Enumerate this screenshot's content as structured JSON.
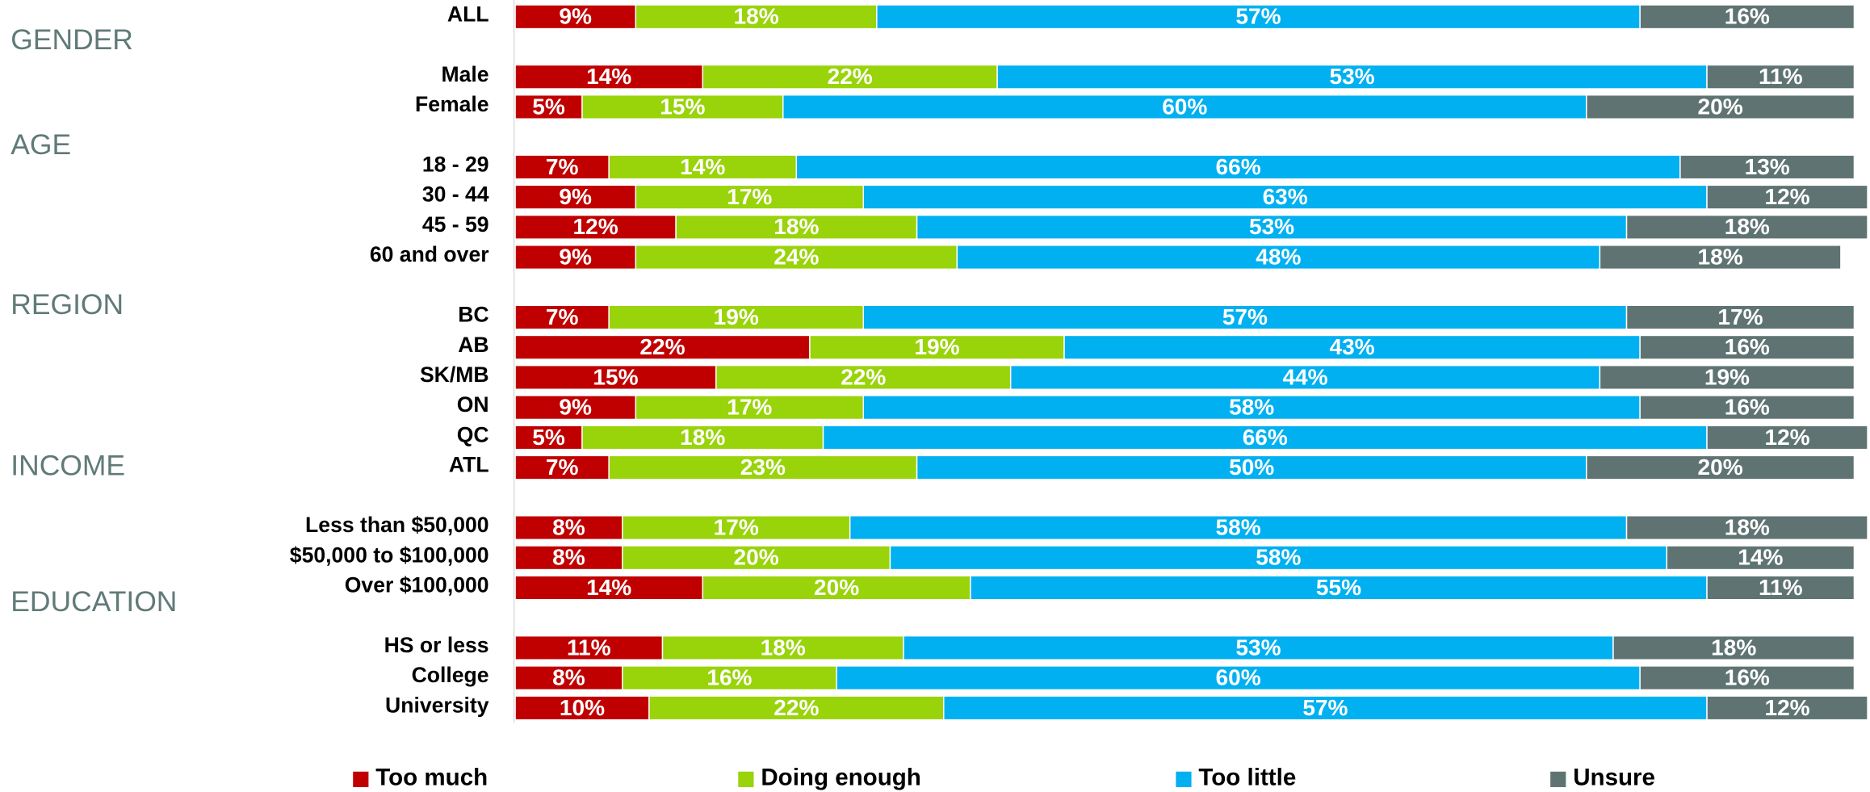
{
  "chart_data": {
    "type": "stacked-bar-horizontal",
    "group_labels": [
      "GENDER",
      "AGE",
      "REGION",
      "INCOME",
      "EDUCATION"
    ],
    "categories": [
      "ALL",
      "Male",
      "Female",
      "18 - 29",
      "30 - 44",
      "45 - 59",
      "60 and over",
      "BC",
      "AB",
      "SK/MB",
      "ON",
      "QC",
      "ATL",
      "Less than $50,000",
      "$50,000 to $100,000",
      "Over $100,000",
      "HS or less",
      "College",
      "University"
    ],
    "xlim": [
      0,
      101
    ],
    "series": [
      {
        "name": "Too much",
        "color": "#c00000",
        "values": [
          9,
          14,
          5,
          7,
          9,
          12,
          9,
          7,
          22,
          15,
          9,
          5,
          7,
          8,
          8,
          14,
          11,
          8,
          10
        ],
        "value_labels": [
          "9%",
          "14%",
          "5%",
          "7%",
          "9%",
          "12%",
          "9%",
          "7%",
          "22%",
          "15%",
          "9%",
          "5%",
          "7%",
          "8%",
          "8%",
          "14%",
          "11%",
          "8%",
          "10%"
        ]
      },
      {
        "name": "Doing enough",
        "color": "#99d30a",
        "values": [
          18,
          22,
          15,
          14,
          17,
          18,
          24,
          19,
          19,
          22,
          17,
          18,
          23,
          17,
          20,
          20,
          18,
          16,
          22
        ],
        "value_labels": [
          "18%",
          "22%",
          "15%",
          "14%",
          "17%",
          "18%",
          "24%",
          "19%",
          "19%",
          "22%",
          "17%",
          "18%",
          "23%",
          "17%",
          "20%",
          "20%",
          "18%",
          "16%",
          "22%"
        ]
      },
      {
        "name": "Too little",
        "color": "#00b0f0",
        "values": [
          57,
          53,
          60,
          66,
          63,
          53,
          48,
          57,
          43,
          44,
          58,
          66,
          50,
          58,
          58,
          55,
          53,
          60,
          57
        ],
        "value_labels": [
          "57%",
          "53%",
          "60%",
          "66%",
          "63%",
          "53%",
          "48%",
          "57%",
          "43%",
          "44%",
          "58%",
          "66%",
          "50%",
          "58%",
          "58%",
          "55%",
          "53%",
          "60%",
          "57%"
        ]
      },
      {
        "name": "Unsure",
        "color": "#5f7472",
        "values": [
          16,
          11,
          20,
          13,
          12,
          18,
          18,
          17,
          16,
          19,
          16,
          12,
          20,
          18,
          14,
          11,
          18,
          16,
          12
        ],
        "value_labels": [
          "16%",
          "11%",
          "20%",
          "13%",
          "12%",
          "18%",
          "18%",
          "17%",
          "16%",
          "19%",
          "16%",
          "12%",
          "20%",
          "18%",
          "14%",
          "11%",
          "18%",
          "16%",
          "12%"
        ]
      }
    ]
  }
}
